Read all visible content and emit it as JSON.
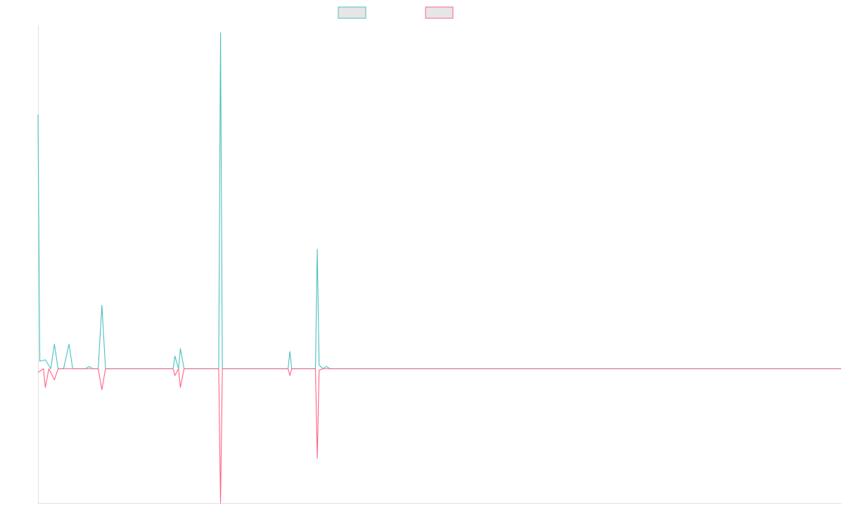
{
  "chart_data": {
    "type": "line",
    "title": "",
    "xlabel": "",
    "ylabel": "",
    "x_range": [
      0,
      220
    ],
    "ylim": [
      -18,
      46
    ],
    "grid": false,
    "legend_placement": "top-center",
    "series": [
      {
        "color": "#4bc0c0",
        "points": [
          [
            0,
            34
          ],
          [
            0.5,
            1
          ],
          [
            2,
            1.2
          ],
          [
            3.5,
            0
          ],
          [
            4.5,
            3.3
          ],
          [
            5.5,
            0
          ],
          [
            7,
            0
          ],
          [
            8.5,
            3.3
          ],
          [
            9.5,
            0
          ],
          [
            13,
            0
          ],
          [
            14,
            0.3
          ],
          [
            15,
            0
          ],
          [
            16.5,
            0
          ],
          [
            17.5,
            8.5
          ],
          [
            18.5,
            0
          ],
          [
            37,
            0
          ],
          [
            37.5,
            1.7
          ],
          [
            38.5,
            0
          ],
          [
            39,
            2.7
          ],
          [
            40,
            0
          ],
          [
            49.5,
            0
          ],
          [
            50,
            45
          ],
          [
            50.5,
            0
          ],
          [
            68.5,
            0
          ],
          [
            69,
            2.3
          ],
          [
            69.5,
            0
          ],
          [
            76,
            0
          ],
          [
            76.5,
            16
          ],
          [
            77,
            0.5
          ],
          [
            78,
            0
          ],
          [
            79,
            0.3
          ],
          [
            80,
            0
          ],
          [
            220,
            0
          ]
        ]
      },
      {
        "color": "#ff6384",
        "points": [
          [
            0,
            -0.5
          ],
          [
            1.5,
            0
          ],
          [
            2,
            -2.5
          ],
          [
            3,
            0
          ],
          [
            4.5,
            -1.5
          ],
          [
            5.5,
            0
          ],
          [
            16.5,
            0
          ],
          [
            17.5,
            -2.8
          ],
          [
            18.5,
            0
          ],
          [
            37,
            0
          ],
          [
            37.5,
            -0.9
          ],
          [
            38.5,
            0
          ],
          [
            39,
            -2.5
          ],
          [
            40,
            0
          ],
          [
            49.5,
            0
          ],
          [
            50,
            -18
          ],
          [
            50.5,
            0
          ],
          [
            68.5,
            0
          ],
          [
            69,
            -0.9
          ],
          [
            69.5,
            0
          ],
          [
            76,
            0
          ],
          [
            76.5,
            -12
          ],
          [
            77,
            -0.2
          ],
          [
            78,
            0
          ],
          [
            220,
            0
          ]
        ]
      }
    ]
  }
}
